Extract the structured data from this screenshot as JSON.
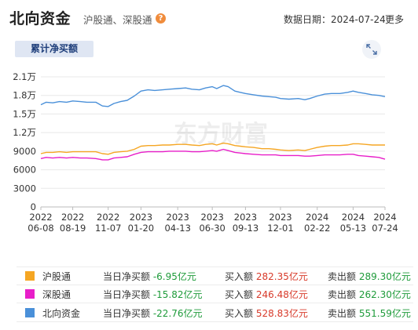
{
  "header": {
    "title": "北向资金",
    "subtitle": "沪股通、深股通",
    "date_label": "数据日期：2024-07-24",
    "more_label": "更多"
  },
  "tab": {
    "label": "累计净买额"
  },
  "watermark": "东方财富",
  "legend": [
    {
      "name": "沪股通",
      "color": "#f5a623",
      "net_label": "当日净买额",
      "net_value": "-6.95亿元",
      "buy_label": "买入额",
      "buy_value": "282.35亿元",
      "sell_label": "卖出额",
      "sell_value": "289.30亿元"
    },
    {
      "name": "深股通",
      "color": "#e81ec9",
      "net_label": "当日净买额",
      "net_value": "-15.82亿元",
      "buy_label": "买入额",
      "buy_value": "246.48亿元",
      "sell_label": "卖出额",
      "sell_value": "262.30亿元"
    },
    {
      "name": "北向资金",
      "color": "#4a90d9",
      "net_label": "当日净买额",
      "net_value": "-22.76亿元",
      "buy_label": "买入额",
      "buy_value": "528.83亿元",
      "sell_label": "卖出额",
      "sell_value": "551.59亿元"
    }
  ],
  "chart_data": {
    "type": "line",
    "ylim": [
      0,
      21000
    ],
    "yticks": [
      0,
      3000,
      6000,
      9000,
      12000,
      15000,
      18000,
      21000
    ],
    "ytick_labels": [
      "0",
      "3000",
      "6000",
      "9000",
      "1.2万",
      "1.5万",
      "1.8万",
      "2.1万"
    ],
    "x_ticks": [
      {
        "year": "2022",
        "md": "06-08",
        "x": "2022-06-08"
      },
      {
        "year": "2022",
        "md": "08-19",
        "x": "2022-08-19"
      },
      {
        "year": "2022",
        "md": "11-07",
        "x": "2022-11-07"
      },
      {
        "year": "2023",
        "md": "01-20",
        "x": "2023-01-20"
      },
      {
        "year": "2023",
        "md": "04-13",
        "x": "2023-04-13"
      },
      {
        "year": "2023",
        "md": "06-30",
        "x": "2023-06-30"
      },
      {
        "year": "2023",
        "md": "09-13",
        "x": "2023-09-13"
      },
      {
        "year": "2023",
        "md": "12-01",
        "x": "2023-12-01"
      },
      {
        "year": "2024",
        "md": "02-22",
        "x": "2024-02-22"
      },
      {
        "year": "2024",
        "md": "05-13",
        "x": "2024-05-13"
      },
      {
        "year": "2024",
        "md": "07-24",
        "x": "2024-07-24"
      }
    ],
    "series": [
      {
        "name": "北向资金",
        "color": "#4a90d9",
        "points": [
          [
            "2022-06-08",
            16500
          ],
          [
            "2022-06-20",
            16900
          ],
          [
            "2022-07-05",
            16800
          ],
          [
            "2022-07-20",
            17000
          ],
          [
            "2022-08-05",
            16900
          ],
          [
            "2022-08-19",
            17100
          ],
          [
            "2022-09-05",
            17000
          ],
          [
            "2022-09-20",
            16900
          ],
          [
            "2022-10-10",
            16900
          ],
          [
            "2022-10-25",
            16300
          ],
          [
            "2022-11-07",
            16200
          ],
          [
            "2022-11-20",
            16700
          ],
          [
            "2022-12-05",
            17000
          ],
          [
            "2022-12-20",
            17200
          ],
          [
            "2023-01-05",
            17900
          ],
          [
            "2023-01-20",
            18700
          ],
          [
            "2023-02-05",
            18900
          ],
          [
            "2023-02-20",
            18800
          ],
          [
            "2023-03-10",
            18900
          ],
          [
            "2023-03-25",
            19000
          ],
          [
            "2023-04-13",
            19100
          ],
          [
            "2023-05-01",
            19200
          ],
          [
            "2023-05-15",
            19000
          ],
          [
            "2023-06-01",
            18900
          ],
          [
            "2023-06-15",
            19200
          ],
          [
            "2023-06-30",
            19400
          ],
          [
            "2023-07-10",
            19100
          ],
          [
            "2023-07-25",
            19600
          ],
          [
            "2023-08-05",
            19400
          ],
          [
            "2023-08-20",
            18700
          ],
          [
            "2023-09-01",
            18500
          ],
          [
            "2023-09-13",
            18300
          ],
          [
            "2023-10-01",
            18100
          ],
          [
            "2023-10-20",
            17900
          ],
          [
            "2023-11-05",
            17800
          ],
          [
            "2023-11-20",
            17700
          ],
          [
            "2023-12-01",
            17500
          ],
          [
            "2023-12-20",
            17400
          ],
          [
            "2024-01-10",
            17500
          ],
          [
            "2024-01-25",
            17300
          ],
          [
            "2024-02-05",
            17500
          ],
          [
            "2024-02-22",
            17900
          ],
          [
            "2024-03-10",
            18200
          ],
          [
            "2024-03-25",
            18300
          ],
          [
            "2024-04-13",
            18300
          ],
          [
            "2024-05-01",
            18500
          ],
          [
            "2024-05-13",
            18700
          ],
          [
            "2024-05-25",
            18500
          ],
          [
            "2024-06-10",
            18300
          ],
          [
            "2024-06-25",
            18100
          ],
          [
            "2024-07-10",
            18000
          ],
          [
            "2024-07-24",
            17800
          ]
        ]
      },
      {
        "name": "沪股通",
        "color": "#f5a623",
        "points": [
          [
            "2022-06-08",
            8600
          ],
          [
            "2022-06-20",
            8800
          ],
          [
            "2022-07-05",
            8800
          ],
          [
            "2022-07-20",
            8900
          ],
          [
            "2022-08-05",
            8800
          ],
          [
            "2022-08-19",
            8900
          ],
          [
            "2022-09-05",
            8900
          ],
          [
            "2022-09-20",
            8900
          ],
          [
            "2022-10-10",
            8900
          ],
          [
            "2022-10-25",
            8600
          ],
          [
            "2022-11-07",
            8500
          ],
          [
            "2022-11-20",
            8800
          ],
          [
            "2022-12-05",
            8900
          ],
          [
            "2022-12-20",
            9000
          ],
          [
            "2023-01-05",
            9300
          ],
          [
            "2023-01-20",
            9800
          ],
          [
            "2023-02-05",
            9900
          ],
          [
            "2023-02-20",
            9900
          ],
          [
            "2023-03-10",
            10000
          ],
          [
            "2023-03-25",
            10000
          ],
          [
            "2023-04-13",
            10100
          ],
          [
            "2023-05-01",
            10100
          ],
          [
            "2023-05-15",
            10000
          ],
          [
            "2023-06-01",
            9900
          ],
          [
            "2023-06-15",
            10100
          ],
          [
            "2023-06-30",
            10200
          ],
          [
            "2023-07-10",
            10000
          ],
          [
            "2023-07-25",
            10300
          ],
          [
            "2023-08-05",
            10200
          ],
          [
            "2023-08-20",
            9900
          ],
          [
            "2023-09-01",
            9800
          ],
          [
            "2023-09-13",
            9700
          ],
          [
            "2023-10-01",
            9600
          ],
          [
            "2023-10-20",
            9400
          ],
          [
            "2023-11-05",
            9400
          ],
          [
            "2023-11-20",
            9300
          ],
          [
            "2023-12-01",
            9200
          ],
          [
            "2023-12-20",
            9100
          ],
          [
            "2024-01-10",
            9200
          ],
          [
            "2024-01-25",
            9100
          ],
          [
            "2024-02-05",
            9300
          ],
          [
            "2024-02-22",
            9600
          ],
          [
            "2024-03-10",
            9800
          ],
          [
            "2024-03-25",
            9900
          ],
          [
            "2024-04-13",
            9900
          ],
          [
            "2024-05-01",
            10000
          ],
          [
            "2024-05-13",
            10200
          ],
          [
            "2024-05-25",
            10200
          ],
          [
            "2024-06-10",
            10100
          ],
          [
            "2024-06-25",
            10000
          ],
          [
            "2024-07-10",
            10000
          ],
          [
            "2024-07-24",
            10000
          ]
        ]
      },
      {
        "name": "深股通",
        "color": "#e81ec9",
        "points": [
          [
            "2022-06-08",
            7800
          ],
          [
            "2022-06-20",
            8000
          ],
          [
            "2022-07-05",
            7900
          ],
          [
            "2022-07-20",
            8000
          ],
          [
            "2022-08-05",
            7900
          ],
          [
            "2022-08-19",
            8000
          ],
          [
            "2022-09-05",
            7900
          ],
          [
            "2022-09-20",
            7900
          ],
          [
            "2022-10-10",
            7800
          ],
          [
            "2022-10-25",
            7600
          ],
          [
            "2022-11-07",
            7600
          ],
          [
            "2022-11-20",
            7900
          ],
          [
            "2022-12-05",
            8000
          ],
          [
            "2022-12-20",
            8100
          ],
          [
            "2023-01-05",
            8500
          ],
          [
            "2023-01-20",
            8800
          ],
          [
            "2023-02-05",
            8900
          ],
          [
            "2023-02-20",
            8900
          ],
          [
            "2023-03-10",
            8900
          ],
          [
            "2023-03-25",
            9000
          ],
          [
            "2023-04-13",
            9000
          ],
          [
            "2023-05-01",
            9000
          ],
          [
            "2023-05-15",
            8900
          ],
          [
            "2023-06-01",
            8900
          ],
          [
            "2023-06-15",
            9000
          ],
          [
            "2023-06-30",
            9100
          ],
          [
            "2023-07-10",
            9000
          ],
          [
            "2023-07-25",
            9300
          ],
          [
            "2023-08-05",
            9100
          ],
          [
            "2023-08-20",
            8800
          ],
          [
            "2023-09-01",
            8700
          ],
          [
            "2023-09-13",
            8600
          ],
          [
            "2023-10-01",
            8500
          ],
          [
            "2023-10-20",
            8400
          ],
          [
            "2023-11-05",
            8400
          ],
          [
            "2023-11-20",
            8400
          ],
          [
            "2023-12-01",
            8300
          ],
          [
            "2023-12-20",
            8300
          ],
          [
            "2024-01-10",
            8300
          ],
          [
            "2024-01-25",
            8200
          ],
          [
            "2024-02-05",
            8200
          ],
          [
            "2024-02-22",
            8300
          ],
          [
            "2024-03-10",
            8400
          ],
          [
            "2024-03-25",
            8400
          ],
          [
            "2024-04-13",
            8400
          ],
          [
            "2024-05-01",
            8500
          ],
          [
            "2024-05-13",
            8500
          ],
          [
            "2024-05-25",
            8300
          ],
          [
            "2024-06-10",
            8200
          ],
          [
            "2024-06-25",
            8100
          ],
          [
            "2024-07-10",
            8000
          ],
          [
            "2024-07-24",
            7700
          ]
        ]
      }
    ]
  }
}
